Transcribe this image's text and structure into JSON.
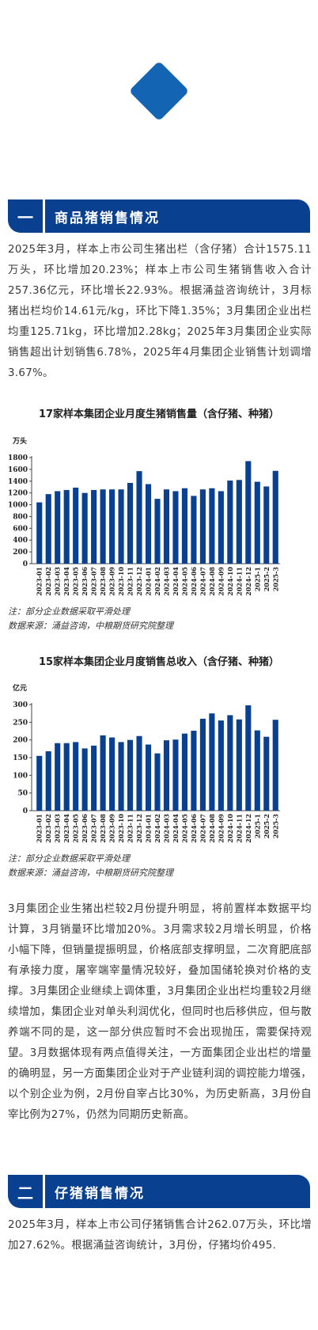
{
  "section1": {
    "num": "一",
    "title": "商品猪销售情况"
  },
  "section2": {
    "num": "二",
    "title": "仔猪销售情况"
  },
  "para1": "2025年3月，样本上市公司生猪出栏（含仔猪）合计1575.11万头，环比增加20.23%；样本上市公司生猪销售收入合计257.36亿元，环比增长22.93%。根据涌益咨询统计，3月标猪出栏均价14.61元/kg，环比下降1.35%；3月集团企业出栏均重125.71kg，环比增加2.28kg；2025年3月集团企业实际销售超出计划销售6.78%，2025年4月集团企业销售计划调增3.67%。",
  "para2": "3月集团企业生猪出栏较2月份提升明显，将前置样本数据平均计算，3月销量环比增加20%。3月需求较2月增长明显，价格小幅下降，但销量提振明显，价格底部支撑明显，二次育肥底部有承接力度，屠宰端宰量情况较好，叠加国储轮换对价格的支撑。3月集团企业继续上调体重，3月集团企业出栏均重较2月继续增加，集团企业对单头利润优化，但同时也后移供应，但与散养端不同的是，这一部分供应暂时不会出现抛压，需要保持观望。3月数据体现有两点值得关注，一方面集团企业出栏的增量的确明显，另一方面集团企业对于产业链利润的调控能力增强，以个别企业为例，2月份自宰占比30%，为历史新高，3月份自宰比例为27%，仍然为同期历史新高。",
  "para3": "2025年3月，样本上市公司仔猪销售合计262.07万头，环比增加27.62%。根据涌益咨询统计，3月份，仔猪均价495.",
  "chart1_title": "17家样本集团企业月度生猪销售量（含仔猪、种猪）",
  "chart2_title": "15家样本集团企业月度销售总收入（含仔猪、种猪）",
  "note1": "注：部分企业数据采取平滑处理",
  "source1": "数据来源：涌益咨询，中粮期货研究院整理",
  "note2": "注：部分企业数据采取平滑处理",
  "source2": "数据来源：涌益咨询，中粮期货研究院整理",
  "chart_data": [
    {
      "type": "bar",
      "title": "17家样本集团企业月度生猪销售量（含仔猪、种猪）",
      "unit": "万头",
      "ylim": [
        0,
        1800
      ],
      "yticks": [
        0,
        200,
        400,
        600,
        800,
        1000,
        1200,
        1400,
        1600,
        1800
      ],
      "color": "#0a4090",
      "categories": [
        "2023-01",
        "2023-02",
        "2023-03",
        "2023-04",
        "2023-05",
        "2023-06",
        "2023-07",
        "2023-08",
        "2023-09",
        "2023-10",
        "2023-11",
        "2023-12",
        "2024-01",
        "2024-02",
        "2024-03",
        "2024-04",
        "2024-05",
        "2024-06",
        "2024-07",
        "2024-08",
        "2024-09",
        "2024-10",
        "2024-11",
        "2024-12",
        "2025-1",
        "2025-2",
        "2025-3"
      ],
      "values": [
        1040,
        1180,
        1230,
        1250,
        1290,
        1200,
        1250,
        1260,
        1260,
        1260,
        1370,
        1570,
        1350,
        1100,
        1260,
        1230,
        1280,
        1150,
        1260,
        1280,
        1230,
        1410,
        1420,
        1740,
        1390,
        1310,
        1575
      ]
    },
    {
      "type": "bar",
      "title": "15家样本集团企业月度销售总收入（含仔猪、种猪）",
      "unit": "亿元",
      "ylim": [
        0,
        300
      ],
      "yticks": [
        0,
        50,
        100,
        150,
        200,
        250,
        300
      ],
      "color": "#0a4090",
      "categories": [
        "2023-01",
        "2023-02",
        "2023-03",
        "2023-04",
        "2023-05",
        "2023-06",
        "2023-07",
        "2023-08",
        "2023-09",
        "2023-10",
        "2023-11",
        "2023-12",
        "2024-01",
        "2024-02",
        "2024-03",
        "2024-04",
        "2024-05",
        "2024-06",
        "2024-07",
        "2024-08",
        "2024-09",
        "2024-10",
        "2024-11",
        "2024-12",
        "2025-1",
        "2025-2",
        "2025-3"
      ],
      "values": [
        155,
        168,
        191,
        191,
        194,
        176,
        184,
        213,
        207,
        194,
        200,
        211,
        187,
        162,
        199,
        201,
        218,
        226,
        260,
        275,
        255,
        270,
        258,
        298,
        227,
        209,
        257
      ]
    }
  ]
}
